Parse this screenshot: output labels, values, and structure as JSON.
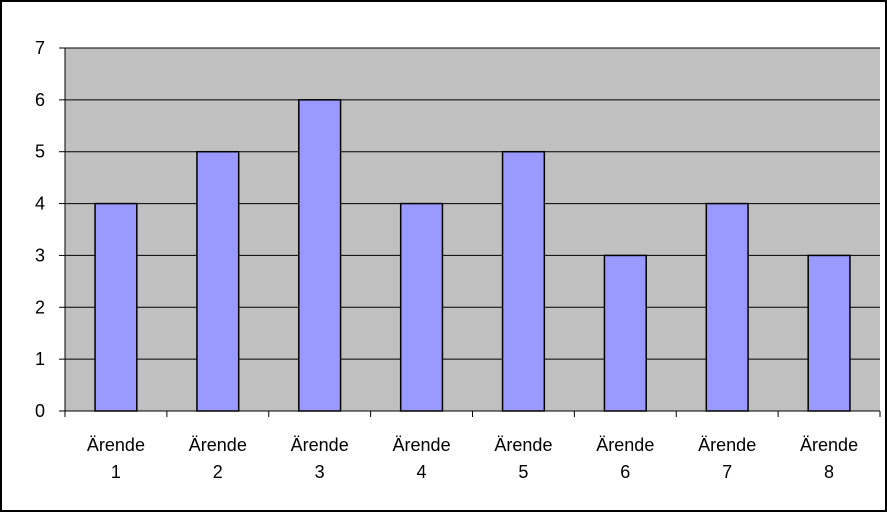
{
  "chart_data": {
    "type": "bar",
    "title": "",
    "xlabel": "",
    "ylabel": "",
    "categories": [
      [
        "Ärende",
        "1"
      ],
      [
        "Ärende",
        "2"
      ],
      [
        "Ärende",
        "3"
      ],
      [
        "Ärende",
        "4"
      ],
      [
        "Ärende",
        "5"
      ],
      [
        "Ärende",
        "6"
      ],
      [
        "Ärende",
        "7"
      ],
      [
        "Ärende",
        "8"
      ]
    ],
    "values": [
      4,
      5,
      6,
      4,
      5,
      3,
      4,
      3
    ],
    "ylim": [
      0,
      7
    ],
    "yticks": [
      "0",
      "1",
      "2",
      "3",
      "4",
      "5",
      "6",
      "7"
    ],
    "grid": true,
    "legend": "none",
    "colors": {
      "bar_fill": "#9999ff",
      "bar_stroke": "#000000",
      "plot_background": "#c0c0c0",
      "gridline": "#000000",
      "chart_border": "#000000"
    }
  }
}
